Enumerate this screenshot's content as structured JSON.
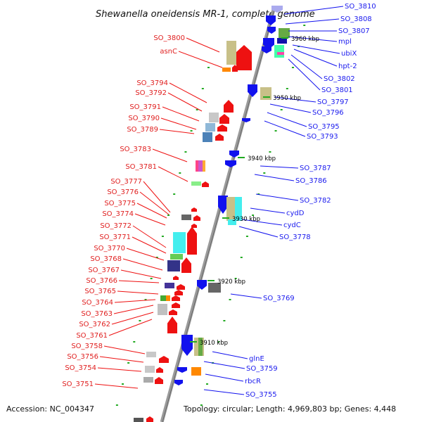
{
  "title": "Shewanella oneidensis MR-1, complete genome",
  "footer": {
    "accession": "Accession: NC_004347",
    "summary": "Topology: circular; Length: 4,969,803 bp; Genes: 4,448"
  },
  "kbp_markers": [
    "3960 kbp",
    "3950 kbp",
    "3940 kbp",
    "3930 kbp",
    "3920 kbp",
    "3910 kbp"
  ],
  "left_labels": [
    "SO_3800",
    "asnC",
    "SO_3794",
    "SO_3792",
    "SO_3791",
    "SO_3790",
    "SO_3789",
    "SO_3783",
    "SO_3781",
    "SO_3777",
    "SO_3776",
    "SO_3775",
    "SO_3774",
    "SO_3772",
    "SO_3771",
    "SO_3770",
    "SO_3768",
    "SO_3767",
    "SO_3766",
    "SO_3765",
    "SO_3764",
    "SO_3763",
    "SO_3762",
    "SO_3761",
    "SO_3758",
    "SO_3756",
    "SO_3754",
    "SO_3751"
  ],
  "right_labels": [
    "SO_3810",
    "SO_3808",
    "SO_3807",
    "mpl",
    "ubiX",
    "hpt-2",
    "SO_3802",
    "SO_3801",
    "SO_3797",
    "SO_3796",
    "SO_3795",
    "SO_3793",
    "SO_3787",
    "SO_3786",
    "SO_3782",
    "cydD",
    "cydC",
    "SO_3778",
    "SO_3769",
    "glnE",
    "SO_3759",
    "rbcR",
    "SO_3755"
  ],
  "colors": {
    "left_strand": "#ee1111",
    "right_strand": "#1111ee",
    "backbone": "#9a9a9a",
    "tick": "#22aa22"
  }
}
